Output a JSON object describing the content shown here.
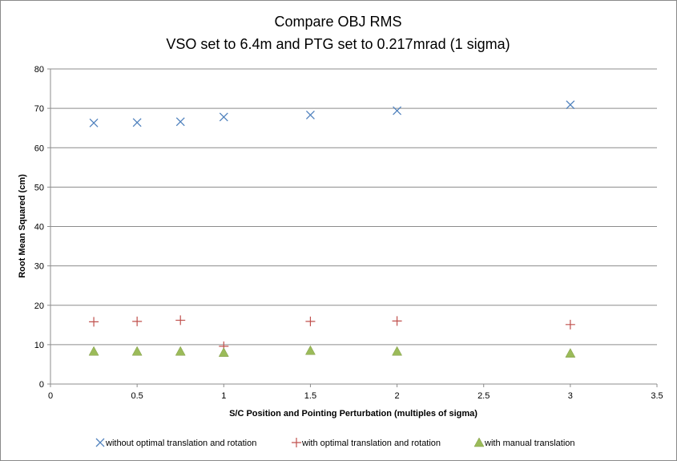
{
  "chart_data": {
    "type": "scatter",
    "title": [
      "Compare OBJ RMS",
      "VSO set to 6.4m and PTG set to 0.217mrad (1 sigma)"
    ],
    "xlabel": "S/C Position and Pointing Perturbation (multiples of sigma)",
    "ylabel": "Root Mean Squared (cm)",
    "xlim": [
      0,
      3.5
    ],
    "ylim": [
      0,
      80
    ],
    "xticks": [
      "0",
      "0.5",
      "1",
      "1.5",
      "2",
      "2.5",
      "3",
      "3.5"
    ],
    "yticks": [
      "0",
      "10",
      "20",
      "30",
      "40",
      "50",
      "60",
      "70",
      "80"
    ],
    "grid": "horizontal",
    "legend_position": "bottom",
    "x": [
      0.25,
      0.5,
      0.75,
      1,
      1.5,
      2,
      3
    ],
    "series": [
      {
        "name": "without optimal translation and rotation",
        "marker": "x",
        "color": "#4f81bd",
        "values": [
          66.3,
          66.4,
          66.6,
          67.8,
          68.3,
          69.4,
          70.9
        ]
      },
      {
        "name": "with optimal translation and rotation",
        "marker": "plus",
        "color": "#c0504d",
        "values": [
          15.8,
          15.9,
          16.2,
          9.6,
          15.9,
          16.0,
          15.1
        ]
      },
      {
        "name": "with manual translation",
        "marker": "triangle",
        "color": "#9bbb59",
        "values": [
          8.3,
          8.3,
          8.3,
          8.0,
          8.5,
          8.3,
          7.8
        ]
      }
    ]
  }
}
